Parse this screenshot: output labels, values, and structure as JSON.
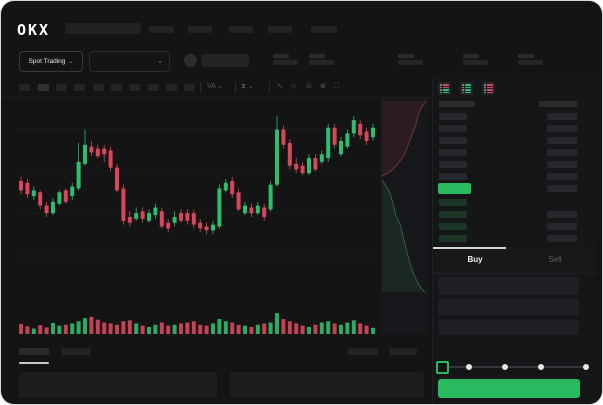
{
  "brand": "OKX",
  "header": {
    "product_selector_label": "Spot Trading",
    "chevron_down": "⌄"
  },
  "chart_toolbar": {
    "interval_label": "VA",
    "indicator_label": "⧗",
    "chevron": "⌄",
    "tools": [
      "∿",
      "◇",
      "⊙",
      "⊗",
      "⛶"
    ]
  },
  "order_book": {
    "view_icons": [
      "book-both-icon",
      "book-bids-icon",
      "book-asks-icon"
    ]
  },
  "trade_panel": {
    "buy_tab": "Buy",
    "sell_tab": "Sell"
  },
  "colors": {
    "up": "#2dbd6e",
    "down": "#d8465c",
    "accent": "#2abb60",
    "grid": "#1c1c1c",
    "depth_panel_bg": "#17181b"
  },
  "chart_data": {
    "type": "candlestick",
    "title": "",
    "xlabel": "",
    "ylabel": "",
    "axis_labels_visible": false,
    "grid": "faint horizontal lines",
    "price_scale": [
      0,
      100
    ],
    "candles": [
      [
        59,
        61,
        52,
        54
      ],
      [
        58,
        60,
        50,
        52
      ],
      [
        51,
        56,
        49,
        54
      ],
      [
        53,
        54,
        44,
        46
      ],
      [
        46,
        48,
        40,
        42
      ],
      [
        42,
        50,
        41,
        48
      ],
      [
        47,
        54,
        46,
        53
      ],
      [
        54,
        55,
        47,
        48
      ],
      [
        51,
        58,
        49,
        56
      ],
      [
        55,
        79,
        54,
        69
      ],
      [
        68,
        86,
        67,
        78
      ],
      [
        77,
        80,
        72,
        74
      ],
      [
        76,
        78,
        71,
        72
      ],
      [
        76,
        78,
        69,
        73
      ],
      [
        75,
        77,
        64,
        66
      ],
      [
        66,
        68,
        53,
        54
      ],
      [
        55,
        57,
        36,
        38
      ],
      [
        40,
        43,
        35,
        37
      ],
      [
        39,
        45,
        38,
        42
      ],
      [
        43,
        45,
        37,
        39
      ],
      [
        38,
        44,
        37,
        42
      ],
      [
        41,
        47,
        39,
        45
      ],
      [
        43,
        45,
        34,
        35
      ],
      [
        37,
        39,
        32,
        34
      ],
      [
        37,
        43,
        35,
        40
      ],
      [
        42,
        44,
        37,
        38
      ],
      [
        42,
        44,
        36,
        38
      ],
      [
        42,
        44,
        34,
        36
      ],
      [
        37,
        39,
        32,
        34
      ],
      [
        35,
        37,
        31,
        33
      ],
      [
        33,
        38,
        31,
        36
      ],
      [
        35,
        57,
        34,
        55
      ],
      [
        54,
        60,
        53,
        58
      ],
      [
        59,
        61,
        50,
        52
      ],
      [
        53,
        55,
        43,
        44
      ],
      [
        42,
        48,
        41,
        46
      ],
      [
        45,
        47,
        40,
        42
      ],
      [
        42,
        48,
        41,
        46
      ],
      [
        45,
        47,
        38,
        40
      ],
      [
        44,
        59,
        43,
        57
      ],
      [
        57,
        93,
        56,
        86
      ],
      [
        86,
        88,
        76,
        78
      ],
      [
        79,
        81,
        65,
        67
      ],
      [
        68,
        71,
        63,
        65
      ],
      [
        67,
        69,
        62,
        63
      ],
      [
        63,
        73,
        62,
        71
      ],
      [
        71,
        73,
        64,
        65
      ],
      [
        69,
        75,
        68,
        73
      ],
      [
        71,
        89,
        69,
        87
      ],
      [
        87,
        89,
        76,
        78
      ],
      [
        73,
        82,
        72,
        80
      ],
      [
        77,
        86,
        76,
        84
      ],
      [
        84,
        93,
        82,
        91
      ],
      [
        89,
        91,
        81,
        83
      ],
      [
        85,
        87,
        78,
        80
      ],
      [
        82,
        89,
        80,
        87
      ]
    ],
    "volumes": [
      45,
      35,
      25,
      40,
      30,
      50,
      38,
      42,
      48,
      58,
      72,
      78,
      65,
      52,
      48,
      42,
      58,
      62,
      48,
      38,
      32,
      42,
      52,
      38,
      42,
      48,
      52,
      58,
      42,
      38,
      48,
      68,
      58,
      52,
      42,
      38,
      32,
      42,
      48,
      52,
      95,
      68,
      58,
      48,
      38,
      32,
      42,
      52,
      58,
      48,
      42,
      52,
      62,
      48,
      38,
      28
    ],
    "depth": {
      "ask_curve": [
        [
          46,
          3
        ],
        [
          41,
          10
        ],
        [
          38,
          18
        ],
        [
          36,
          26
        ],
        [
          33,
          34
        ],
        [
          30,
          42
        ],
        [
          27,
          50
        ],
        [
          24,
          57
        ],
        [
          20,
          63
        ],
        [
          16,
          68
        ],
        [
          12,
          72
        ],
        [
          8,
          75
        ],
        [
          2,
          78
        ]
      ],
      "bid_curve": [
        [
          2,
          82
        ],
        [
          6,
          88
        ],
        [
          10,
          95
        ],
        [
          12,
          102
        ],
        [
          14,
          110
        ],
        [
          16,
          118
        ],
        [
          20,
          126
        ],
        [
          22,
          134
        ],
        [
          24,
          142
        ],
        [
          26,
          150
        ],
        [
          28,
          158
        ],
        [
          30,
          166
        ],
        [
          33,
          174
        ],
        [
          36,
          181
        ],
        [
          39,
          187
        ],
        [
          42,
          191
        ],
        [
          45,
          194
        ]
      ]
    }
  }
}
